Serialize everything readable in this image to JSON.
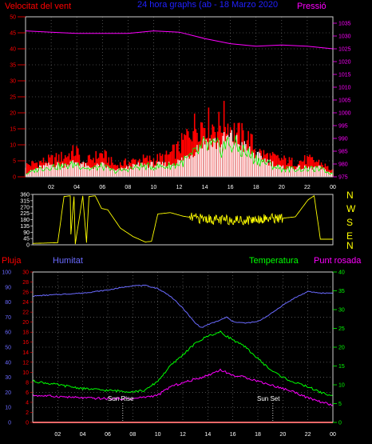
{
  "header": {
    "left": "Velocitat del vent",
    "center": "24 hora graphs (ab - 18 Marzo 2020",
    "right": "Pressió"
  },
  "middle_compass": [
    "N",
    "W",
    "S",
    "E",
    "N"
  ],
  "bottom_header": {
    "rain": "Pluja",
    "humidity": "Humitat",
    "temperature": "Temperatura",
    "dewpoint": "Punt rosada"
  },
  "annotations": {
    "sunrise": "Sun Rise",
    "sunset": "Sun Set"
  },
  "colors": {
    "wind_gust": "#ff0000",
    "wind_avg": "#ffffff",
    "wind_min": "#00ff00",
    "pressure": "#ff00ff",
    "direction": "#ffff00",
    "humidity": "#6a6aff",
    "temperature": "#00ff00",
    "dewpoint": "#ff00ff",
    "rain": "#ff0000",
    "frame": "#d0d0d0",
    "grid": "#808080"
  },
  "chart_data": [
    {
      "type": "area",
      "title": "24 hora graphs (ab - 18 Marzo 2020",
      "left_axis": {
        "label": "Velocitat del vent",
        "ticks": [
          "0",
          "5",
          "10",
          "15",
          "20",
          "25",
          "30",
          "35",
          "40",
          "45",
          "50"
        ],
        "range": [
          0,
          50
        ]
      },
      "right_axis": {
        "label": "Pressió",
        "ticks": [
          "975",
          "980",
          "985",
          "990",
          "995",
          "1000",
          "1005",
          "1010",
          "1015",
          "1020",
          "1025",
          "1030",
          "1035"
        ],
        "range": [
          975,
          1037.5
        ]
      },
      "x_axis": {
        "ticks": [
          "02",
          "04",
          "06",
          "08",
          "10",
          "12",
          "14",
          "16",
          "18",
          "20",
          "22",
          "00"
        ],
        "range": [
          0,
          24
        ]
      },
      "grid": true,
      "series": [
        {
          "name": "Velocitat del vent",
          "x": [
            0,
            1,
            2,
            3,
            4,
            4.5,
            5,
            6,
            7,
            8,
            9,
            10,
            11,
            12,
            13,
            13.5,
            14,
            14.5,
            15,
            15.5,
            16,
            16.5,
            17,
            17.5,
            18,
            19,
            20,
            21,
            22,
            23,
            24
          ],
          "values": [
            4,
            5,
            6,
            7,
            9,
            4,
            6,
            8,
            4,
            5,
            6,
            6,
            7,
            10,
            17,
            18,
            19,
            18,
            17,
            20,
            17,
            15,
            14,
            13,
            9,
            7,
            6,
            5,
            6,
            5,
            2
          ]
        },
        {
          "name": "",
          "x": [
            0,
            1,
            2,
            3,
            4,
            5,
            6,
            7,
            8,
            9,
            10,
            11,
            12,
            13,
            14,
            15,
            16,
            17,
            18,
            19,
            20,
            21,
            22,
            23,
            24
          ],
          "values": [
            1,
            3,
            4,
            4,
            5,
            3,
            4,
            2,
            3,
            4,
            4,
            4,
            5,
            8,
            12,
            11,
            13,
            10,
            7,
            5,
            3,
            3,
            3,
            3,
            1
          ]
        },
        {
          "name": "Pressió",
          "x": [
            0,
            2,
            4,
            6,
            8,
            10,
            12,
            14,
            16,
            18,
            20,
            22,
            24
          ],
          "values": [
            1032,
            1031.5,
            1031,
            1031,
            1031,
            1032,
            1031.5,
            1029,
            1027,
            1026,
            1026.5,
            1026,
            1025
          ]
        }
      ]
    },
    {
      "type": "line",
      "left_axis": {
        "ticks": [
          "0",
          "45",
          "90",
          "135",
          "180",
          "225",
          "270",
          "315",
          "360"
        ],
        "range": [
          0,
          360
        ]
      },
      "right_axis": {
        "ticks": [
          "N",
          "W",
          "S",
          "E",
          "N"
        ]
      },
      "series": [
        {
          "name": "",
          "x": [
            0,
            2,
            2.5,
            3,
            3,
            3.3,
            3.4,
            4,
            4.3,
            4.5,
            5,
            5.5,
            6,
            7,
            8,
            9,
            9.5,
            10,
            11,
            12,
            13,
            14,
            15,
            16,
            17,
            18,
            19,
            20,
            21,
            22,
            22.5,
            23,
            24
          ],
          "values": [
            10,
            15,
            345,
            350,
            20,
            345,
            5,
            350,
            15,
            345,
            350,
            260,
            250,
            120,
            60,
            20,
            25,
            220,
            230,
            205,
            190,
            185,
            175,
            180,
            175,
            185,
            190,
            190,
            200,
            320,
            350,
            40,
            40
          ]
        }
      ]
    },
    {
      "type": "line",
      "left_axis": {
        "label": "Pluja",
        "ticks": [
          "0",
          "10",
          "20",
          "30",
          "40",
          "50",
          "60",
          "70",
          "80",
          "90",
          "100"
        ],
        "range": [
          0,
          100
        ]
      },
      "left_axis_2": {
        "label": "",
        "ticks": [
          "0",
          "2",
          "4",
          "6",
          "8",
          "10",
          "12",
          "14",
          "16",
          "18",
          "20",
          "22",
          "24",
          "26",
          "28",
          "30"
        ],
        "range": [
          0,
          30
        ]
      },
      "right_axis": {
        "label": "Temperatura",
        "ticks": [
          "0",
          "5",
          "10",
          "15",
          "20",
          "25",
          "30",
          "35",
          "40"
        ],
        "range": [
          0,
          40
        ]
      },
      "x_axis": {
        "ticks": [
          "02",
          "04",
          "06",
          "08",
          "10",
          "12",
          "14",
          "16",
          "18",
          "20",
          "22",
          "00"
        ],
        "range": [
          0,
          24
        ]
      },
      "grid": true,
      "series": [
        {
          "name": "Humitat",
          "axis": "left",
          "x": [
            0,
            2,
            4,
            6,
            8,
            9,
            10,
            11,
            12,
            13,
            13.5,
            14,
            15,
            15.5,
            16,
            17,
            18,
            19,
            20,
            21,
            22,
            23,
            24
          ],
          "values": [
            84,
            85,
            86,
            88,
            91,
            91,
            89,
            84,
            76,
            66,
            63,
            65,
            68,
            70,
            67,
            66,
            67,
            72,
            78,
            83,
            87,
            86,
            86
          ]
        },
        {
          "name": "Temperatura",
          "axis": "right",
          "x": [
            0,
            2,
            4,
            6,
            8,
            9,
            10,
            11,
            12,
            13,
            14,
            15,
            16,
            17,
            18,
            19,
            20,
            21,
            22,
            23,
            24
          ],
          "values": [
            11,
            10,
            9,
            8.5,
            8.2,
            8.5,
            11,
            15,
            18,
            21,
            23,
            24,
            22,
            20,
            17,
            14,
            12,
            10.5,
            9.5,
            8,
            7
          ]
        },
        {
          "name": "Punt rosada",
          "axis": "right",
          "x": [
            0,
            2,
            4,
            6,
            8,
            10,
            11,
            12,
            13,
            14,
            15,
            16,
            17,
            18,
            19,
            20,
            21,
            22,
            23,
            24
          ],
          "values": [
            7.2,
            6.9,
            6.5,
            6.3,
            6.3,
            7.2,
            9.5,
            10.5,
            11.5,
            12.5,
            14,
            12.5,
            12,
            11,
            10,
            9,
            8,
            6.5,
            5.5,
            4.5
          ]
        },
        {
          "name": "Pluja",
          "axis": "left",
          "x": [
            0,
            24
          ],
          "values": [
            0,
            0
          ]
        }
      ],
      "markers": [
        {
          "label": "Sun Rise",
          "x": 7.2
        },
        {
          "label": "Sun Set",
          "x": 19.2
        }
      ]
    }
  ]
}
